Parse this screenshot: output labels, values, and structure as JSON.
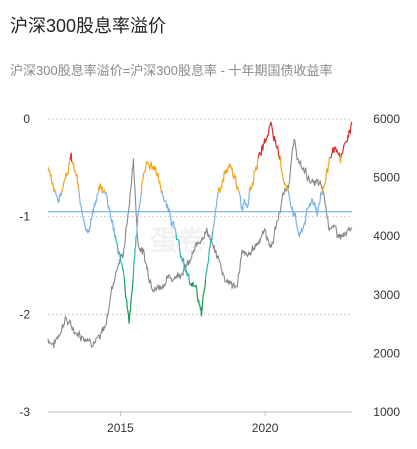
{
  "header": {
    "title": "沪深300股息率溢价",
    "subtitle": "沪深300股息率溢价=沪深300股息率 - 十年期国债收益率"
  },
  "colors": {
    "grid": "#c8c8c8",
    "baseline": "#6fa8dc",
    "axis": "#bfbfbf",
    "index_line": "#888888",
    "bands": {
      "red": "#d62d2d",
      "orange": "#f0a820",
      "blue": "#7ab3e8",
      "teal": "#2bb3b3",
      "green": "#1a9a5a"
    }
  },
  "watermark": "蛋卷",
  "chart_data": {
    "type": "line",
    "x_range": [
      2012.5,
      2023.0
    ],
    "x_ticks": [
      2015,
      2020
    ],
    "x_tick_labels": [
      "2015",
      "2020"
    ],
    "y_left": {
      "range": [
        -3,
        0
      ],
      "ticks": [
        0,
        -1,
        -2,
        -3
      ],
      "tick_labels": [
        "0",
        "-1",
        "-2",
        "-3"
      ],
      "reference_line": -0.95
    },
    "y_right": {
      "range": [
        1000,
        6000
      ],
      "ticks": [
        6000,
        5000,
        4000,
        3000,
        2000,
        1000
      ],
      "tick_labels": [
        "6000",
        "5000",
        "4000",
        "3000",
        "2000",
        "1000"
      ]
    },
    "bands": [
      {
        "color_key": "red",
        "min": -0.4,
        "max": 1.0
      },
      {
        "color_key": "orange",
        "min": -0.75,
        "max": -0.4
      },
      {
        "color_key": "blue",
        "min": -1.2,
        "max": -0.75
      },
      {
        "color_key": "teal",
        "min": -1.65,
        "max": -1.2
      },
      {
        "color_key": "green",
        "min": -5.0,
        "max": -1.65
      }
    ],
    "grid": true,
    "series": [
      {
        "axis": "left",
        "x": [
          2012.5,
          2012.7,
          2012.9,
          2013.1,
          2013.3,
          2013.5,
          2013.7,
          2013.9,
          2014.1,
          2014.3,
          2014.5,
          2014.7,
          2014.9,
          2015.1,
          2015.3,
          2015.45,
          2015.6,
          2015.8,
          2016.0,
          2016.2,
          2016.4,
          2016.6,
          2016.8,
          2017.0,
          2017.2,
          2017.4,
          2017.6,
          2017.8,
          2018.0,
          2018.2,
          2018.4,
          2018.6,
          2018.8,
          2019.0,
          2019.2,
          2019.4,
          2019.6,
          2019.8,
          2020.0,
          2020.2,
          2020.4,
          2020.6,
          2020.8,
          2021.0,
          2021.2,
          2021.4,
          2021.6,
          2021.8,
          2022.0,
          2022.2,
          2022.4,
          2022.6,
          2022.8,
          2023.0
        ],
        "y": [
          -0.5,
          -0.75,
          -0.8,
          -0.62,
          -0.4,
          -0.6,
          -1.05,
          -1.1,
          -0.9,
          -0.7,
          -0.75,
          -1.0,
          -1.3,
          -1.55,
          -2.1,
          -1.6,
          -1.0,
          -0.55,
          -0.45,
          -0.5,
          -0.7,
          -0.9,
          -1.05,
          -1.3,
          -1.5,
          -1.65,
          -1.75,
          -2.0,
          -1.5,
          -1.1,
          -0.75,
          -0.55,
          -0.5,
          -0.65,
          -0.9,
          -0.85,
          -0.6,
          -0.4,
          -0.25,
          -0.05,
          -0.3,
          -0.55,
          -0.75,
          -0.95,
          -1.2,
          -1.0,
          -0.8,
          -0.95,
          -0.7,
          -0.5,
          -0.3,
          -0.4,
          -0.25,
          -0.05
        ]
      },
      {
        "axis": "right",
        "x": [
          2012.5,
          2012.7,
          2012.9,
          2013.1,
          2013.3,
          2013.5,
          2013.7,
          2013.9,
          2014.1,
          2014.3,
          2014.5,
          2014.7,
          2014.9,
          2015.1,
          2015.3,
          2015.45,
          2015.6,
          2015.8,
          2016.0,
          2016.2,
          2016.4,
          2016.6,
          2016.8,
          2017.0,
          2017.2,
          2017.4,
          2017.6,
          2017.8,
          2018.0,
          2018.2,
          2018.4,
          2018.6,
          2018.8,
          2019.0,
          2019.2,
          2019.4,
          2019.6,
          2019.8,
          2020.0,
          2020.2,
          2020.4,
          2020.6,
          2020.8,
          2021.0,
          2021.2,
          2021.4,
          2021.6,
          2021.8,
          2022.0,
          2022.2,
          2022.4,
          2022.6,
          2022.8,
          2023.0
        ],
        "y": [
          2250,
          2150,
          2350,
          2600,
          2450,
          2350,
          2300,
          2250,
          2200,
          2250,
          2500,
          3100,
          3500,
          3700,
          4500,
          5300,
          3900,
          3700,
          3300,
          3100,
          3150,
          3250,
          3300,
          3350,
          3450,
          3550,
          3800,
          4000,
          4100,
          3800,
          3600,
          3300,
          3200,
          3100,
          3700,
          3650,
          3800,
          3950,
          4100,
          3800,
          4200,
          4650,
          4900,
          5600,
          5200,
          5100,
          4900,
          4900,
          4800,
          4200,
          4100,
          4000,
          4000,
          4150
        ]
      }
    ]
  }
}
